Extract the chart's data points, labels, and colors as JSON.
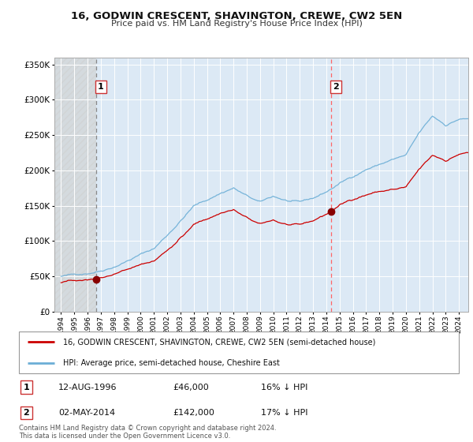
{
  "title": "16, GODWIN CRESCENT, SHAVINGTON, CREWE, CW2 5EN",
  "subtitle": "Price paid vs. HM Land Registry's House Price Index (HPI)",
  "sale1_label": "12-AUG-1996",
  "sale1_price": 46000,
  "sale1_hpi_text": "16% ↓ HPI",
  "sale2_label": "02-MAY-2014",
  "sale2_price": 142000,
  "sale2_hpi_text": "17% ↓ HPI",
  "legend_line1": "16, GODWIN CRESCENT, SHAVINGTON, CREWE, CW2 5EN (semi-detached house)",
  "legend_line2": "HPI: Average price, semi-detached house, Cheshire East",
  "footer": "Contains HM Land Registry data © Crown copyright and database right 2024.\nThis data is licensed under the Open Government Licence v3.0.",
  "hpi_color": "#6baed6",
  "price_color": "#cc0000",
  "sale1_vline_color": "#999999",
  "sale2_vline_color": "#ff6666",
  "box1_edge_color": "#cc3333",
  "box2_edge_color": "#cc3333",
  "bg_color": "#dce9f5",
  "hatch_color": "#c8c8c8",
  "ylim": [
    0,
    360000
  ],
  "xmin": 1993.5,
  "xmax": 2024.7
}
